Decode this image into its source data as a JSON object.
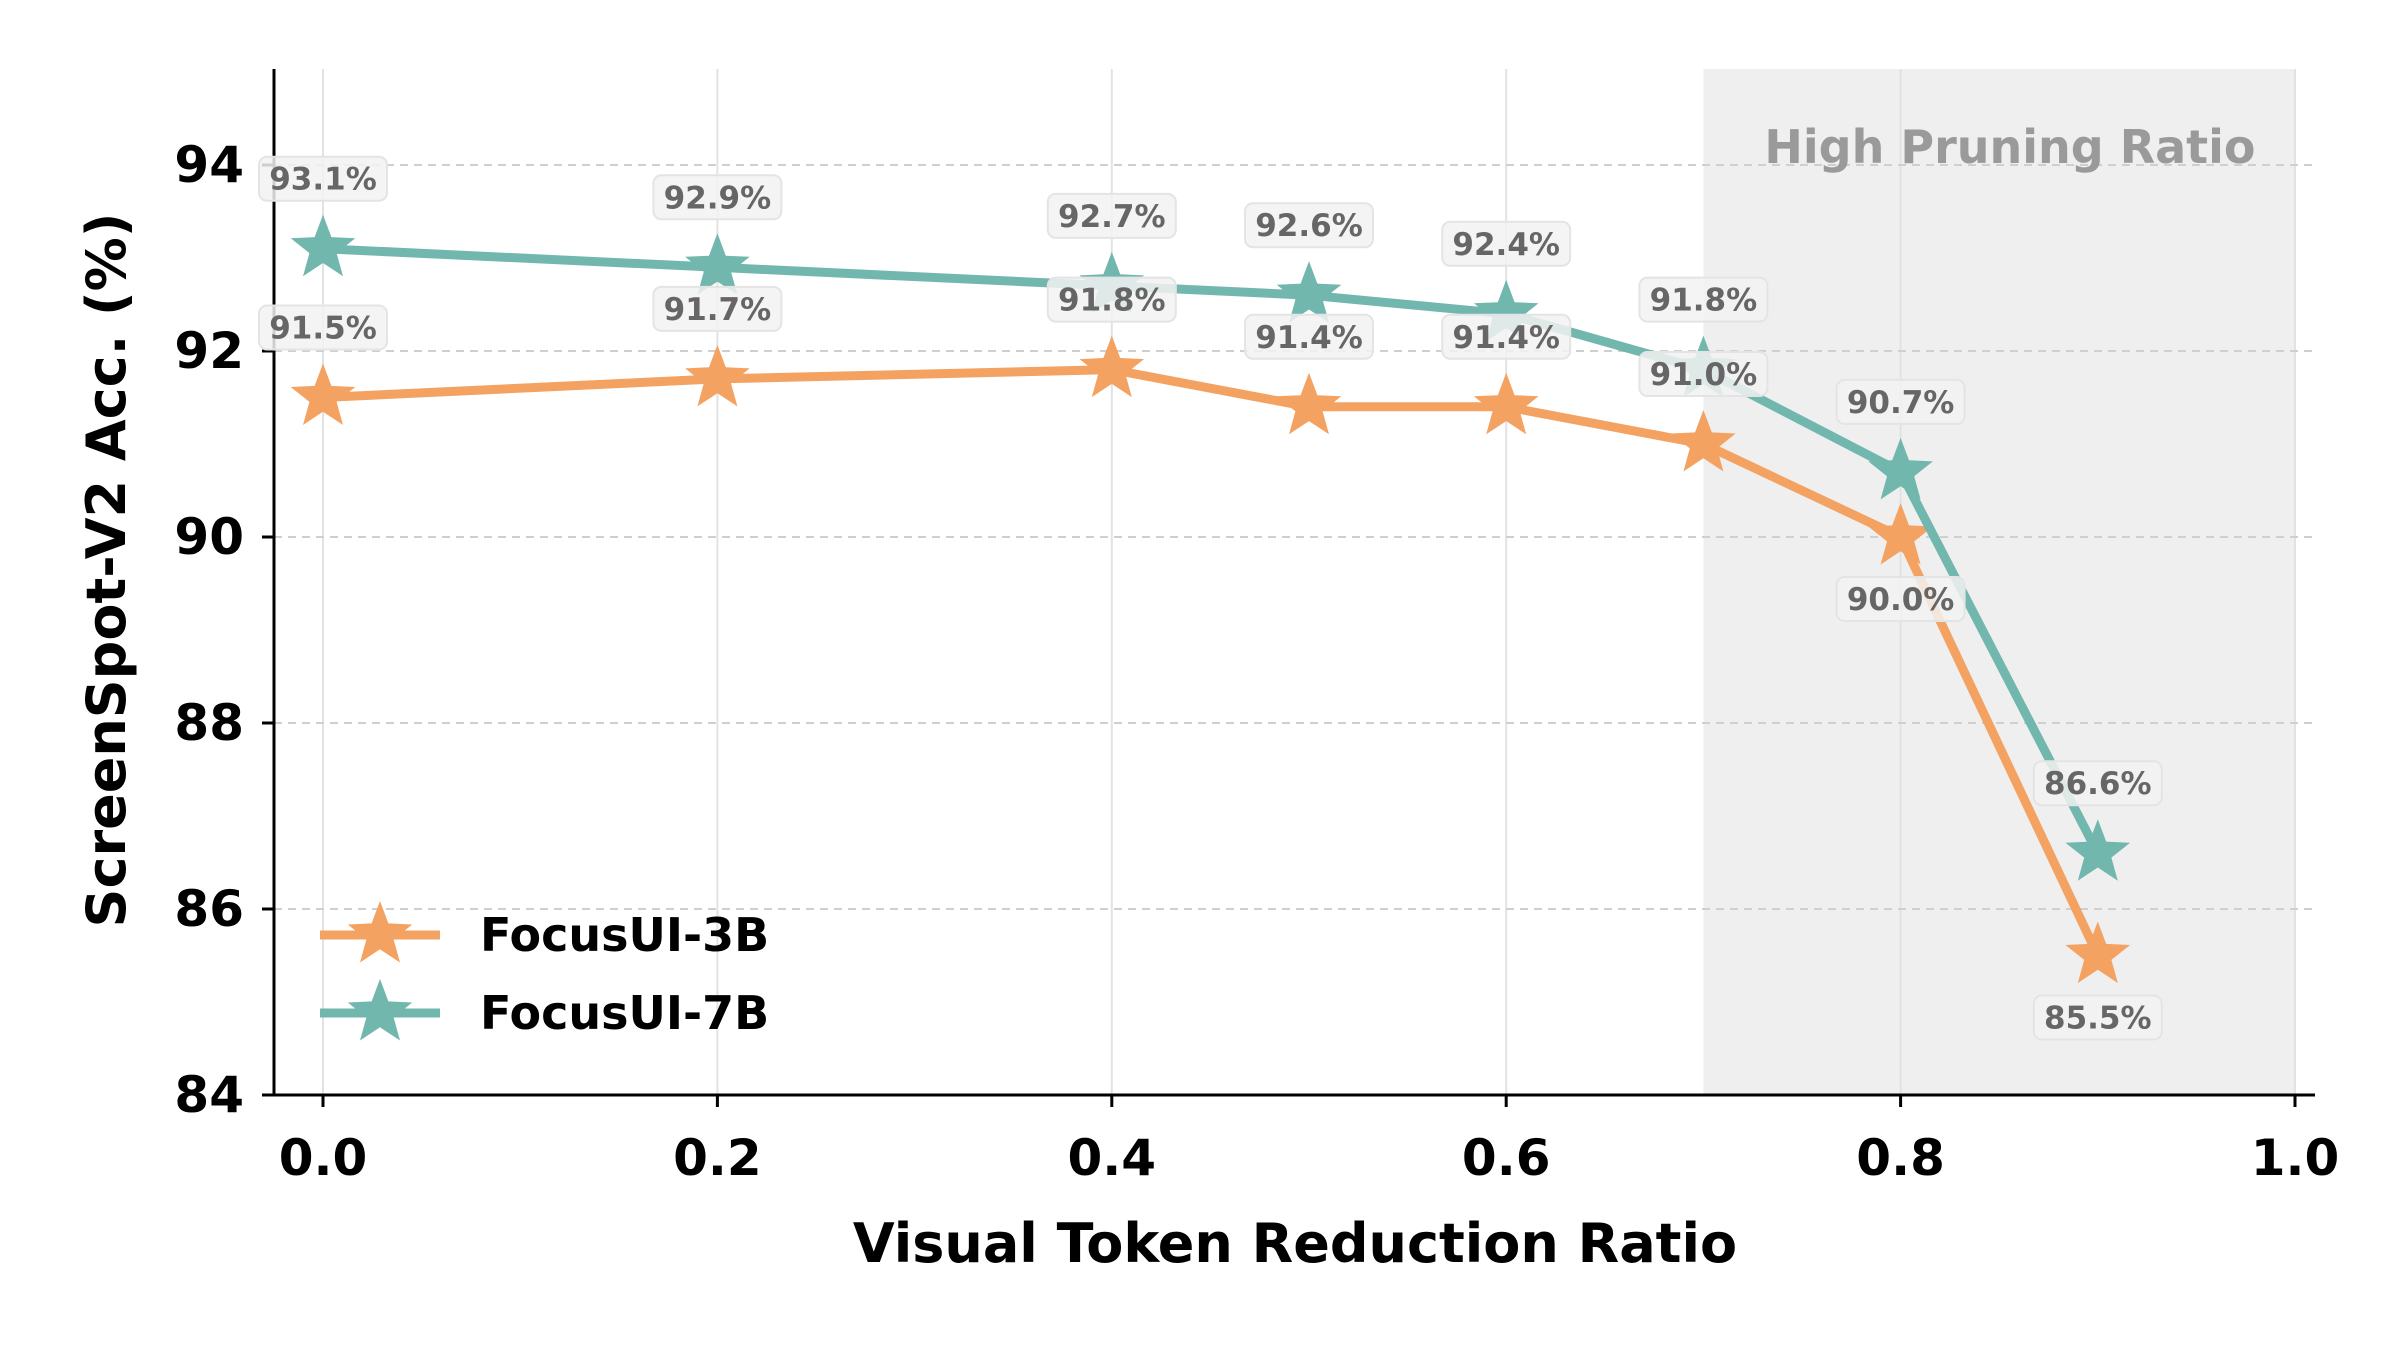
{
  "chart_data": {
    "type": "line",
    "title": "",
    "xlabel": "Visual Token Reduction Ratio",
    "ylabel": "ScreenSpot-V2 Acc. (%)",
    "xlim": [
      -0.025,
      1.01
    ],
    "ylim": [
      84,
      95
    ],
    "xticks": [
      "0.0",
      "0.2",
      "0.4",
      "0.6",
      "0.8",
      "1.0"
    ],
    "yticks": [
      "84",
      "86",
      "88",
      "90",
      "92",
      "94"
    ],
    "grid": true,
    "legend_position": "bottom-left",
    "shaded_region": {
      "label": "High Pruning Ratio",
      "x_range": [
        0.7,
        1.0
      ],
      "color": "#efefef"
    },
    "x": [
      0.0,
      0.2,
      0.4,
      0.5,
      0.6,
      0.7,
      0.8,
      0.9
    ],
    "series": [
      {
        "name": "FocusUI-3B",
        "color": "#F4A261",
        "marker": "star",
        "values": [
          91.5,
          91.7,
          91.8,
          91.4,
          91.4,
          91.0,
          90.0,
          85.5
        ],
        "labels": [
          "91.5%",
          "91.7%",
          "91.8%",
          "91.4%",
          "91.4%",
          "91.0%",
          "90.0%",
          "85.5%"
        ]
      },
      {
        "name": "FocusUI-7B",
        "color": "#72B7AE",
        "marker": "star",
        "values": [
          93.1,
          92.9,
          92.7,
          92.6,
          92.4,
          91.8,
          90.7,
          86.6
        ],
        "labels": [
          "93.1%",
          "92.9%",
          "92.7%",
          "92.6%",
          "92.4%",
          "91.8%",
          "90.7%",
          "86.6%"
        ]
      }
    ]
  }
}
